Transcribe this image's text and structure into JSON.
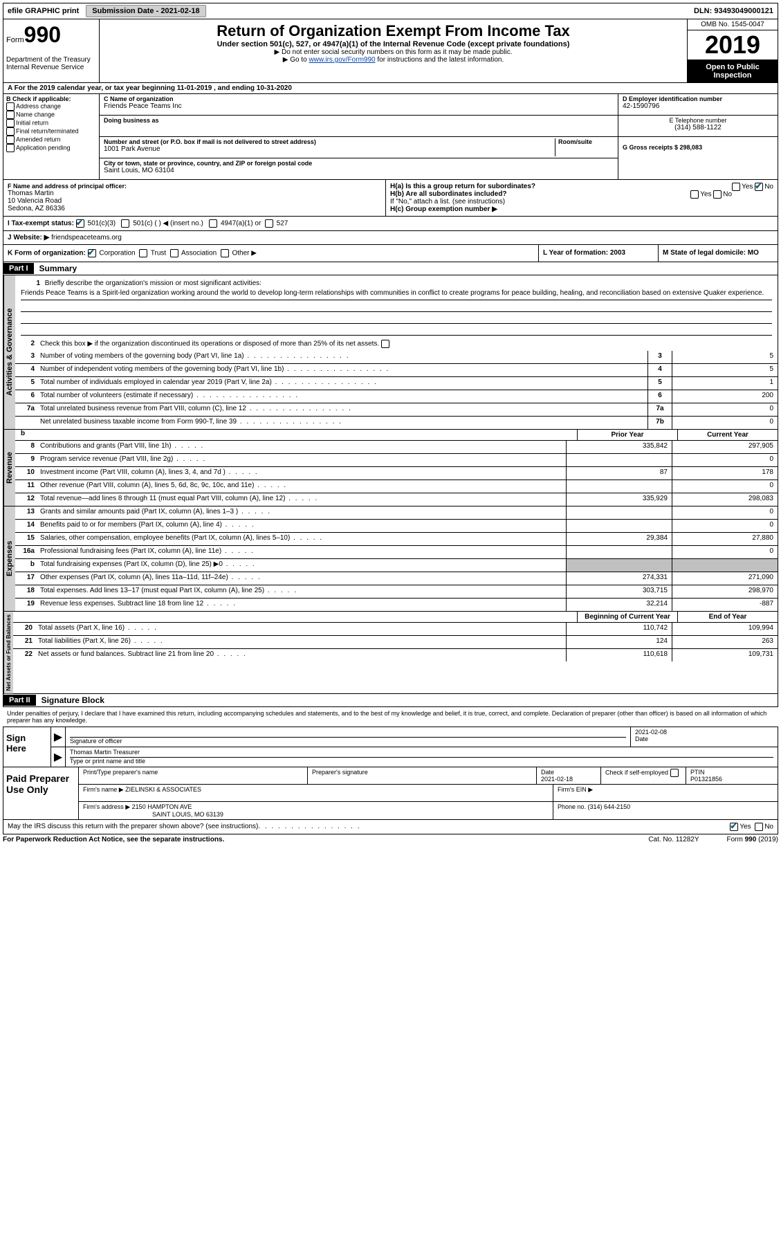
{
  "topbar": {
    "efile": "efile GRAPHIC print",
    "submission": "Submission Date - 2021-02-18",
    "dln": "DLN: 93493049000121"
  },
  "header": {
    "form_prefix": "Form",
    "form_num": "990",
    "dept": "Department of the Treasury\nInternal Revenue Service",
    "title": "Return of Organization Exempt From Income Tax",
    "sub": "Under section 501(c), 527, or 4947(a)(1) of the Internal Revenue Code (except private foundations)",
    "note1": "▶ Do not enter social security numbers on this form as it may be made public.",
    "note2": "▶ Go to ",
    "link": "www.irs.gov/Form990",
    "note2b": " for instructions and the latest information.",
    "omb": "OMB No. 1545-0047",
    "year": "2019",
    "inspect": "Open to Public Inspection"
  },
  "line_a": "A For the 2019 calendar year, or tax year beginning 11-01-2019    , and ending 10-31-2020",
  "box_b": {
    "hdr": "B Check if applicable:",
    "items": [
      "Address change",
      "Name change",
      "Initial return",
      "Final return/terminated",
      "Amended return",
      "Application pending"
    ]
  },
  "box_c": {
    "name_label": "C Name of organization",
    "name": "Friends Peace Teams Inc",
    "dba_label": "Doing business as",
    "addr_label": "Number and street (or P.O. box if mail is not delivered to street address)",
    "room_label": "Room/suite",
    "addr": "1001 Park Avenue",
    "city_label": "City or town, state or province, country, and ZIP or foreign postal code",
    "city": "Saint Louis, MO  63104"
  },
  "box_de": {
    "d_label": "D Employer identification number",
    "d_val": "42-1590796",
    "e_label": "E Telephone number",
    "e_val": "(314) 588-1122",
    "g_label": "G Gross receipts $ 298,083"
  },
  "box_f": {
    "label": "F  Name and address of principal officer:",
    "name": "Thomas Martin",
    "addr1": "10 Valencia Road",
    "addr2": "Sedona, AZ  86336"
  },
  "box_h": {
    "ha": "H(a)  Is this a group return for subordinates?",
    "hb": "H(b)  Are all subordinates included?",
    "hb_note": "If \"No,\" attach a list. (see instructions)",
    "hc": "H(c)  Group exemption number ▶",
    "yes": "Yes",
    "no": "No"
  },
  "box_i": {
    "label": "I   Tax-exempt status:",
    "o1": "501(c)(3)",
    "o2": "501(c) (  ) ◀ (insert no.)",
    "o3": "4947(a)(1) or",
    "o4": "527"
  },
  "box_j": {
    "label": "J   Website: ▶",
    "val": " friendspeaceteams.org"
  },
  "box_k": {
    "label": "K Form of organization:",
    "o1": "Corporation",
    "o2": "Trust",
    "o3": "Association",
    "o4": "Other ▶"
  },
  "box_l": {
    "label": "L Year of formation: 2003"
  },
  "box_m": {
    "label": "M State of legal domicile: MO"
  },
  "part1": {
    "hdr": "Part I",
    "title": "Summary",
    "tab_ag": "Activities & Governance",
    "tab_rev": "Revenue",
    "tab_exp": "Expenses",
    "tab_na": "Net Assets or Fund Balances",
    "l1": "Briefly describe the organization's mission or most significant activities:",
    "mission": "Friends Peace Teams is a Spirit-led organization working around the world to develop long-term relationships with communities in conflict to create programs for peace building, healing, and reconciliation based on extensive Quaker experience.",
    "l2": "Check this box ▶        if the organization discontinued its operations or disposed of more than 25% of its net assets.",
    "rows_ag": [
      {
        "n": "3",
        "t": "Number of voting members of the governing body (Part VI, line 1a)",
        "box": "3",
        "v": "5"
      },
      {
        "n": "4",
        "t": "Number of independent voting members of the governing body (Part VI, line 1b)",
        "box": "4",
        "v": "5"
      },
      {
        "n": "5",
        "t": "Total number of individuals employed in calendar year 2019 (Part V, line 2a)",
        "box": "5",
        "v": "1"
      },
      {
        "n": "6",
        "t": "Total number of volunteers (estimate if necessary)",
        "box": "6",
        "v": "200"
      },
      {
        "n": "7a",
        "t": "Total unrelated business revenue from Part VIII, column (C), line 12",
        "box": "7a",
        "v": "0"
      },
      {
        "n": "",
        "t": "Net unrelated business taxable income from Form 990-T, line 39",
        "box": "7b",
        "v": "0"
      }
    ],
    "hdr_prior": "Prior Year",
    "hdr_curr": "Current Year",
    "rows_rev": [
      {
        "n": "8",
        "t": "Contributions and grants (Part VIII, line 1h)",
        "p": "335,842",
        "c": "297,905"
      },
      {
        "n": "9",
        "t": "Program service revenue (Part VIII, line 2g)",
        "p": "",
        "c": "0"
      },
      {
        "n": "10",
        "t": "Investment income (Part VIII, column (A), lines 3, 4, and 7d )",
        "p": "87",
        "c": "178"
      },
      {
        "n": "11",
        "t": "Other revenue (Part VIII, column (A), lines 5, 6d, 8c, 9c, 10c, and 11e)",
        "p": "",
        "c": "0"
      },
      {
        "n": "12",
        "t": "Total revenue—add lines 8 through 11 (must equal Part VIII, column (A), line 12)",
        "p": "335,929",
        "c": "298,083"
      }
    ],
    "rows_exp": [
      {
        "n": "13",
        "t": "Grants and similar amounts paid (Part IX, column (A), lines 1–3 )",
        "p": "",
        "c": "0"
      },
      {
        "n": "14",
        "t": "Benefits paid to or for members (Part IX, column (A), line 4)",
        "p": "",
        "c": "0"
      },
      {
        "n": "15",
        "t": "Salaries, other compensation, employee benefits (Part IX, column (A), lines 5–10)",
        "p": "29,384",
        "c": "27,880"
      },
      {
        "n": "16a",
        "t": "Professional fundraising fees (Part IX, column (A), line 11e)",
        "p": "",
        "c": "0"
      },
      {
        "n": "b",
        "t": "Total fundraising expenses (Part IX, column (D), line 25) ▶0",
        "p": "SHADE",
        "c": "SHADE"
      },
      {
        "n": "17",
        "t": "Other expenses (Part IX, column (A), lines 11a–11d, 11f–24e)",
        "p": "274,331",
        "c": "271,090"
      },
      {
        "n": "18",
        "t": "Total expenses. Add lines 13–17 (must equal Part IX, column (A), line 25)",
        "p": "303,715",
        "c": "298,970"
      },
      {
        "n": "19",
        "t": "Revenue less expenses. Subtract line 18 from line 12",
        "p": "32,214",
        "c": "-887"
      }
    ],
    "hdr_beg": "Beginning of Current Year",
    "hdr_end": "End of Year",
    "rows_na": [
      {
        "n": "20",
        "t": "Total assets (Part X, line 16)",
        "p": "110,742",
        "c": "109,994"
      },
      {
        "n": "21",
        "t": "Total liabilities (Part X, line 26)",
        "p": "124",
        "c": "263"
      },
      {
        "n": "22",
        "t": "Net assets or fund balances. Subtract line 21 from line 20",
        "p": "110,618",
        "c": "109,731"
      }
    ]
  },
  "part2": {
    "hdr": "Part II",
    "title": "Signature Block",
    "decl": "Under penalties of perjury, I declare that I have examined this return, including accompanying schedules and statements, and to the best of my knowledge and belief, it is true, correct, and complete. Declaration of preparer (other than officer) is based on all information of which preparer has any knowledge.",
    "sign_here": "Sign Here",
    "sig_label": "Signature of officer",
    "date_label": "Date",
    "date_val": "2021-02-08",
    "name_val": "Thomas Martin Treasurer",
    "name_label": "Type or print name and title",
    "paid": "Paid Preparer Use Only",
    "p_name_label": "Print/Type preparer's name",
    "p_sig_label": "Preparer's signature",
    "p_date_label": "Date",
    "p_date_val": "2021-02-18",
    "p_check": "Check        if self-employed",
    "ptin_label": "PTIN",
    "ptin_val": "P01321856",
    "firm_name_label": "Firm's name     ▶",
    "firm_name": "ZIELINSKI & ASSOCIATES",
    "firm_ein_label": "Firm's EIN ▶",
    "firm_addr_label": "Firm's address ▶",
    "firm_addr": "2150 HAMPTON AVE",
    "firm_city": "SAINT LOUIS, MO  63139",
    "firm_phone_label": "Phone no. (314) 644-2150",
    "discuss": "May the IRS discuss this return with the preparer shown above? (see instructions)",
    "yes": "Yes",
    "no": "No"
  },
  "footer": {
    "l": "For Paperwork Reduction Act Notice, see the separate instructions.",
    "m": "Cat. No. 11282Y",
    "r": "Form 990 (2019)"
  }
}
